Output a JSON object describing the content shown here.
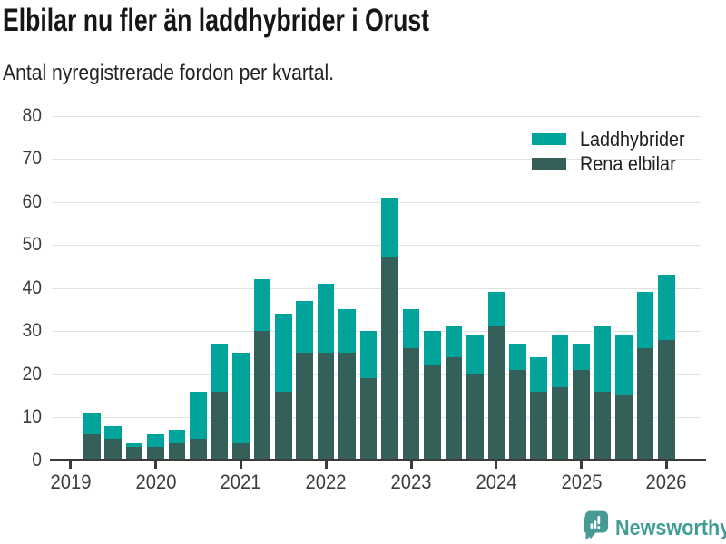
{
  "header": {
    "title": "Elbilar nu fler än laddhybrider i Orust",
    "subtitle": "Antal nyregistrerade fordon per kvartal."
  },
  "chart_data": {
    "type": "bar",
    "stacked": true,
    "title": "Elbilar nu fler än laddhybrider i Orust",
    "subtitle": "Antal nyregistrerade fordon per kvartal.",
    "categories": [
      "2019 Q1",
      "2019 Q2",
      "2019 Q3",
      "2019 Q4",
      "2020 Q1",
      "2020 Q2",
      "2020 Q3",
      "2020 Q4",
      "2021 Q1",
      "2021 Q2",
      "2021 Q3",
      "2021 Q4",
      "2022 Q1",
      "2022 Q2",
      "2022 Q3",
      "2022 Q4",
      "2023 Q1",
      "2023 Q2",
      "2023 Q3",
      "2023 Q4",
      "2024 Q1",
      "2024 Q2",
      "2024 Q3",
      "2024 Q4",
      "2025 Q1",
      "2025 Q2",
      "2025 Q3",
      "2025 Q4",
      "2026 Q1"
    ],
    "series": [
      {
        "name": "Rena elbilar",
        "color": "#35605a",
        "values": [
          0,
          6,
          5,
          3,
          3,
          4,
          5,
          16,
          4,
          30,
          16,
          25,
          25,
          25,
          19,
          47,
          26,
          22,
          24,
          20,
          31,
          21,
          16,
          17,
          21,
          16,
          15,
          26,
          28
        ]
      },
      {
        "name": "Laddhybrider",
        "color": "#00a49b",
        "values": [
          0,
          5,
          3,
          1,
          3,
          3,
          11,
          11,
          21,
          12,
          18,
          12,
          16,
          10,
          11,
          14,
          9,
          8,
          7,
          9,
          8,
          6,
          8,
          12,
          6,
          15,
          14,
          13,
          15
        ]
      }
    ],
    "totals": [
      0,
      11,
      8,
      4,
      6,
      7,
      16,
      27,
      25,
      42,
      34,
      37,
      41,
      35,
      30,
      61,
      35,
      30,
      31,
      29,
      39,
      27,
      24,
      29,
      27,
      31,
      29,
      39,
      43
    ],
    "ylim": [
      0,
      80
    ],
    "yticks": [
      0,
      10,
      20,
      30,
      40,
      50,
      60,
      70,
      80
    ],
    "x_tick_labels": [
      "2019",
      "2020",
      "2021",
      "2022",
      "2023",
      "2024",
      "2025",
      "2026"
    ],
    "grid": true,
    "legend_position": "top-right"
  },
  "legend": {
    "items": [
      {
        "label": "Laddhybrider",
        "color": "#00a49b"
      },
      {
        "label": "Rena elbilar",
        "color": "#35605a"
      }
    ]
  },
  "footer": {
    "brand": "Newsworthy",
    "brand_color": "#3f9d96",
    "logo_icon": "newsworthy-speech-bubble-chart-icon"
  },
  "colors": {
    "laddhybrider": "#00a49b",
    "rena_elbilar": "#35605a",
    "gridline": "#e2e2e2",
    "axis": "#3b3b3b",
    "text": "#3c3c3c",
    "brand": "#3f9d96"
  }
}
